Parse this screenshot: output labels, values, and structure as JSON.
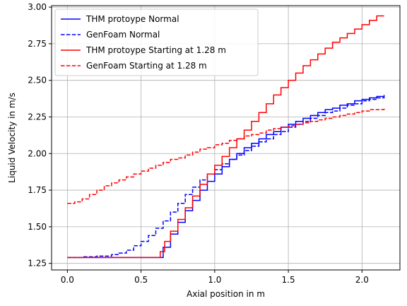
{
  "chart_data": {
    "type": "line",
    "title": "",
    "xlabel": "Axial position in m",
    "ylabel": "Liquid Velocity in m/s",
    "xlim": [
      -0.1075,
      2.2575
    ],
    "ylim": [
      1.205,
      3.01
    ],
    "xticks": [
      0.0,
      0.5,
      1.0,
      1.5,
      2.0
    ],
    "xtick_labels": [
      "0.0",
      "0.5",
      "1.0",
      "1.5",
      "2.0"
    ],
    "yticks": [
      1.25,
      1.5,
      1.75,
      2.0,
      2.25,
      2.5,
      2.75,
      3.0
    ],
    "ytick_labels": [
      "1.25",
      "1.50",
      "1.75",
      "2.00",
      "2.25",
      "2.50",
      "2.75",
      "3.00"
    ],
    "grid": true,
    "legend_position": "top-left",
    "step": true,
    "series": [
      {
        "name": "THM protoype Normal",
        "color": "#0000ff",
        "linestyle": "solid",
        "x": [
          0.0,
          0.6,
          0.65,
          0.7,
          0.75,
          0.8,
          0.85,
          0.9,
          0.95,
          1.0,
          1.05,
          1.1,
          1.15,
          1.2,
          1.25,
          1.3,
          1.35,
          1.4,
          1.45,
          1.5,
          1.55,
          1.6,
          1.65,
          1.7,
          1.75,
          1.8,
          1.85,
          1.9,
          1.95,
          2.0,
          2.05,
          2.1,
          2.15
        ],
        "y": [
          1.29,
          1.29,
          1.36,
          1.45,
          1.53,
          1.61,
          1.68,
          1.75,
          1.81,
          1.86,
          1.91,
          1.96,
          2.0,
          2.04,
          2.07,
          2.1,
          2.13,
          2.15,
          2.18,
          2.2,
          2.22,
          2.24,
          2.26,
          2.28,
          2.3,
          2.31,
          2.33,
          2.34,
          2.36,
          2.37,
          2.38,
          2.39,
          2.4
        ]
      },
      {
        "name": "GenFoam Normal",
        "color": "#0000ff",
        "linestyle": "dashed",
        "x": [
          0.0,
          0.1,
          0.2,
          0.3,
          0.35,
          0.4,
          0.45,
          0.5,
          0.55,
          0.6,
          0.65,
          0.7,
          0.75,
          0.8,
          0.85,
          0.9,
          0.95,
          1.0,
          1.05,
          1.1,
          1.15,
          1.2,
          1.25,
          1.3,
          1.35,
          1.4,
          1.45,
          1.5,
          1.55,
          1.6,
          1.65,
          1.7,
          1.75,
          1.8,
          1.85,
          1.9,
          1.95,
          2.0,
          2.05,
          2.1,
          2.15
        ],
        "y": [
          1.29,
          1.295,
          1.3,
          1.31,
          1.32,
          1.34,
          1.37,
          1.4,
          1.44,
          1.49,
          1.54,
          1.6,
          1.66,
          1.72,
          1.77,
          1.82,
          1.86,
          1.89,
          1.93,
          1.96,
          1.99,
          2.02,
          2.05,
          2.08,
          2.1,
          2.13,
          2.15,
          2.18,
          2.2,
          2.22,
          2.24,
          2.26,
          2.28,
          2.29,
          2.31,
          2.33,
          2.34,
          2.36,
          2.37,
          2.38,
          2.39
        ]
      },
      {
        "name": "THM protoype Starting at 1.28 m",
        "color": "#ff0000",
        "linestyle": "solid",
        "x": [
          0.0,
          0.6,
          0.63,
          0.66,
          0.7,
          0.75,
          0.8,
          0.85,
          0.9,
          0.95,
          1.0,
          1.05,
          1.1,
          1.15,
          1.2,
          1.25,
          1.3,
          1.35,
          1.4,
          1.45,
          1.5,
          1.55,
          1.6,
          1.65,
          1.7,
          1.75,
          1.8,
          1.85,
          1.9,
          1.95,
          2.0,
          2.05,
          2.1,
          2.15
        ],
        "y": [
          1.29,
          1.29,
          1.33,
          1.4,
          1.47,
          1.55,
          1.63,
          1.71,
          1.79,
          1.86,
          1.92,
          1.98,
          2.04,
          2.1,
          2.16,
          2.22,
          2.28,
          2.34,
          2.4,
          2.45,
          2.5,
          2.55,
          2.6,
          2.64,
          2.68,
          2.72,
          2.76,
          2.79,
          2.82,
          2.85,
          2.88,
          2.91,
          2.94,
          2.94
        ]
      },
      {
        "name": "GenFoam Starting at 1.28 m",
        "color": "#ff0000",
        "linestyle": "dashed",
        "x": [
          0.0,
          0.05,
          0.1,
          0.15,
          0.2,
          0.25,
          0.3,
          0.35,
          0.4,
          0.45,
          0.5,
          0.55,
          0.6,
          0.65,
          0.7,
          0.75,
          0.8,
          0.85,
          0.9,
          0.95,
          1.0,
          1.05,
          1.1,
          1.15,
          1.2,
          1.25,
          1.3,
          1.35,
          1.4,
          1.45,
          1.5,
          1.55,
          1.6,
          1.65,
          1.7,
          1.75,
          1.8,
          1.85,
          1.9,
          1.95,
          2.0,
          2.05,
          2.1,
          2.15
        ],
        "y": [
          1.66,
          1.67,
          1.69,
          1.72,
          1.75,
          1.78,
          1.8,
          1.82,
          1.84,
          1.86,
          1.88,
          1.9,
          1.92,
          1.94,
          1.96,
          1.97,
          1.99,
          2.01,
          2.03,
          2.04,
          2.06,
          2.07,
          2.09,
          2.1,
          2.12,
          2.13,
          2.14,
          2.16,
          2.17,
          2.18,
          2.19,
          2.2,
          2.21,
          2.22,
          2.23,
          2.24,
          2.25,
          2.26,
          2.27,
          2.28,
          2.29,
          2.3,
          2.3,
          2.31
        ]
      }
    ]
  }
}
